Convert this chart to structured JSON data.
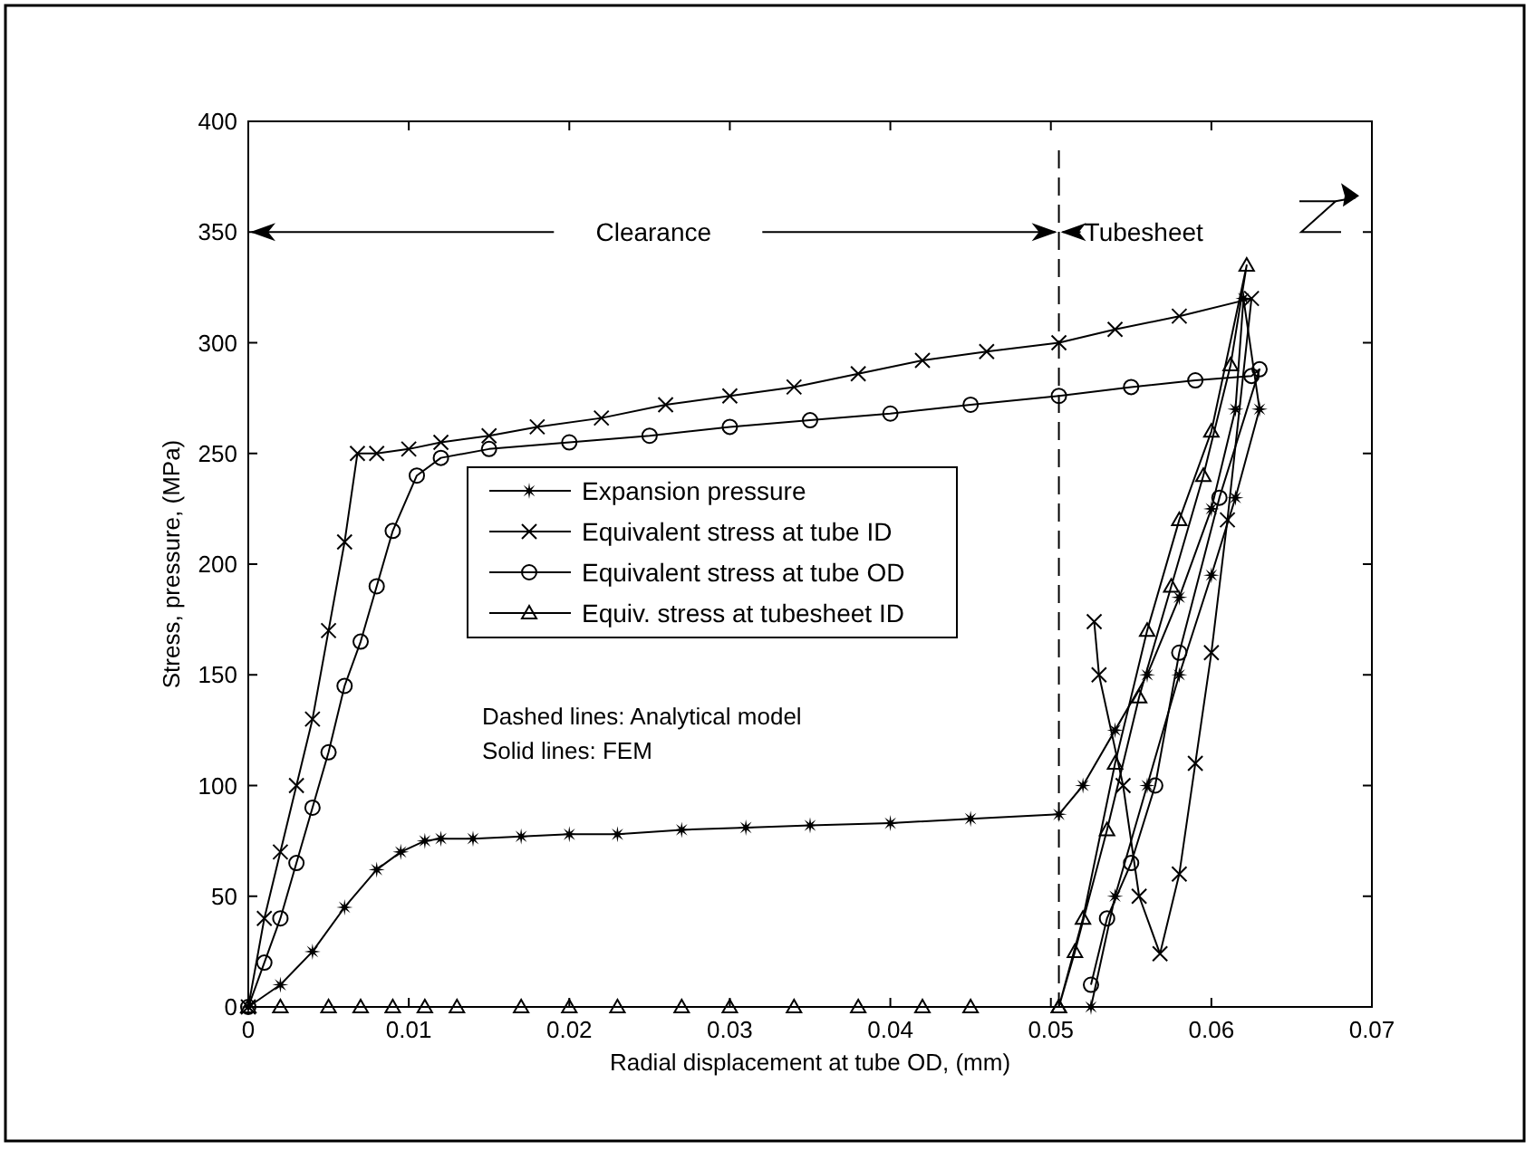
{
  "chart_data": {
    "type": "line",
    "xlabel": "Radial displacement at tube OD, (mm)",
    "ylabel": "Stress, pressure, (MPa)",
    "xlim": [
      0,
      0.07
    ],
    "xticks": [
      0,
      0.01,
      0.02,
      0.03,
      0.04,
      0.05,
      0.06,
      0.07
    ],
    "ylim": [
      0,
      400
    ],
    "yticks": [
      0,
      50,
      100,
      150,
      200,
      250,
      300,
      350,
      400
    ],
    "grid": false,
    "legend": "center",
    "line_style": "solid",
    "series": [
      {
        "name": "Expansion pressure",
        "color": "#000000",
        "marker": "star",
        "x": [
          0,
          0.002,
          0.004,
          0.006,
          0.008,
          0.0095,
          0.011,
          0.012,
          0.014,
          0.017,
          0.02,
          0.023,
          0.027,
          0.031,
          0.035,
          0.04,
          0.045,
          0.0505,
          0.052,
          0.054,
          0.056,
          0.058,
          0.06,
          0.0615,
          0.062,
          0.063,
          0.0615,
          0.06,
          0.058,
          0.056,
          0.054,
          0.0525
        ],
        "values": [
          0,
          10,
          25,
          45,
          62,
          70,
          75,
          76,
          76,
          77,
          78,
          78,
          80,
          81,
          82,
          83,
          85,
          87,
          100,
          125,
          150,
          185,
          225,
          270,
          320,
          270,
          230,
          195,
          150,
          100,
          50,
          0
        ]
      },
      {
        "name": "Equivalent stress at tube ID",
        "color": "#000000",
        "marker": "cross",
        "x": [
          0,
          0.001,
          0.002,
          0.003,
          0.004,
          0.005,
          0.006,
          0.0068,
          0.008,
          0.01,
          0.012,
          0.015,
          0.018,
          0.022,
          0.026,
          0.03,
          0.034,
          0.038,
          0.042,
          0.046,
          0.0505,
          0.054,
          0.058,
          0.0625,
          0.061,
          0.06,
          0.059,
          0.058,
          0.0568,
          0.0555,
          0.0545,
          0.053,
          0.0527
        ],
        "values": [
          0,
          40,
          70,
          100,
          130,
          170,
          210,
          250,
          250,
          252,
          255,
          258,
          262,
          266,
          272,
          276,
          280,
          286,
          292,
          296,
          300,
          306,
          312,
          320,
          220,
          160,
          110,
          60,
          24,
          50,
          100,
          150,
          174
        ]
      },
      {
        "name": "Equivalent stress at tube OD",
        "color": "#000000",
        "marker": "circle",
        "x": [
          0,
          0.001,
          0.002,
          0.003,
          0.004,
          0.005,
          0.006,
          0.007,
          0.008,
          0.009,
          0.0105,
          0.012,
          0.015,
          0.02,
          0.025,
          0.03,
          0.035,
          0.04,
          0.045,
          0.0505,
          0.055,
          0.059,
          0.0625,
          0.063,
          0.0605,
          0.058,
          0.0565,
          0.055,
          0.0535,
          0.0525
        ],
        "values": [
          0,
          20,
          40,
          65,
          90,
          115,
          145,
          165,
          190,
          215,
          240,
          248,
          252,
          255,
          258,
          262,
          265,
          268,
          272,
          276,
          280,
          283,
          285,
          288,
          230,
          160,
          100,
          65,
          40,
          10
        ]
      },
      {
        "name": "Equiv. stress at tubesheet ID",
        "color": "#000000",
        "marker": "triangle",
        "x": [
          0,
          0.002,
          0.005,
          0.007,
          0.009,
          0.011,
          0.013,
          0.017,
          0.02,
          0.023,
          0.027,
          0.03,
          0.034,
          0.038,
          0.042,
          0.045,
          0.0505,
          0.052,
          0.054,
          0.056,
          0.058,
          0.06,
          0.0622,
          0.0612,
          0.0595,
          0.0575,
          0.0555,
          0.0535,
          0.0515,
          0.0505
        ],
        "values": [
          0,
          0,
          0,
          0,
          0,
          0,
          0,
          0,
          0,
          0,
          0,
          0,
          0,
          0,
          0,
          0,
          0,
          40,
          110,
          170,
          220,
          260,
          335,
          290,
          240,
          190,
          140,
          80,
          25,
          0
        ]
      }
    ],
    "ref_lines": [
      {
        "axis": "x",
        "value": 0.0505,
        "line_style": "dashed"
      }
    ],
    "annotations": [
      "Clearance",
      "Tubesheet",
      "Dashed lines: Analytical model",
      "Solid lines: FEM"
    ]
  }
}
